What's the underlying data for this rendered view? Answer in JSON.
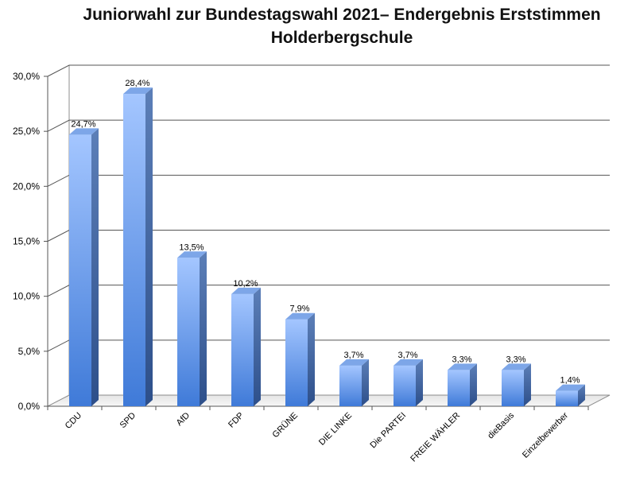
{
  "chart_data": {
    "type": "bar",
    "title": "Juniorwahl zur Bundestagswahl 2021– Endergebnis Erststimmen",
    "subtitle": "Holderbergschule",
    "xlabel": "",
    "ylabel": "",
    "categories": [
      "CDU",
      "SPD",
      "AfD",
      "FDP",
      "GRÜNE",
      "DIE LINKE",
      "Die PARTEI",
      "FREIE WÄHLER",
      "dieBasis",
      "Einzelbewerber"
    ],
    "values": [
      24.7,
      28.4,
      13.5,
      10.2,
      7.9,
      3.7,
      3.7,
      3.3,
      3.3,
      1.4
    ],
    "value_labels": [
      "24,7%",
      "28,4%",
      "13,5%",
      "10,2%",
      "7,9%",
      "3,7%",
      "3,7%",
      "3,3%",
      "3,3%",
      "1,4%"
    ],
    "yticks": [
      0,
      5,
      10,
      15,
      20,
      25,
      30
    ],
    "ytick_labels": [
      "0,0%",
      "5,0%",
      "10,0%",
      "15,0%",
      "20,0%",
      "25,0%",
      "30,0%"
    ],
    "ylim": [
      0,
      30
    ],
    "grid": true,
    "legend": "none",
    "bar_color": "#5b8fe0"
  }
}
